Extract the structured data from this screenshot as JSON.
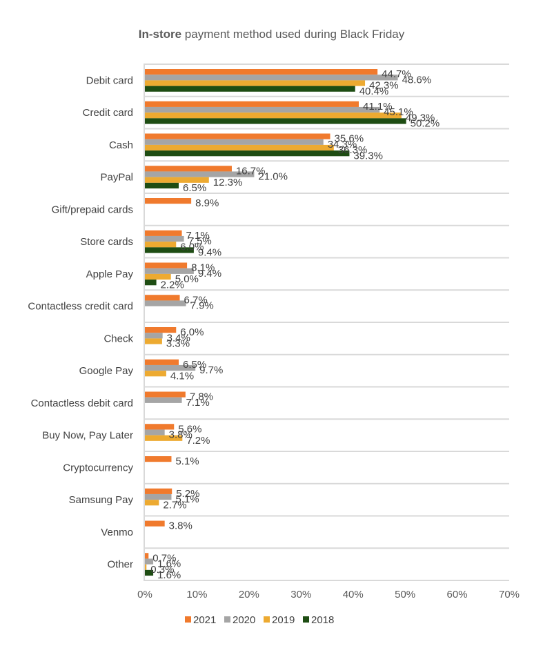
{
  "chart_data": {
    "type": "bar",
    "orientation": "horizontal",
    "title_bold": "In-store",
    "title_rest": " payment method used during Black Friday",
    "title": "In-store payment method used during Black Friday",
    "xlabel": "",
    "ylabel": "",
    "xlim": [
      0,
      70
    ],
    "x_ticks": [
      0,
      10,
      20,
      30,
      40,
      50,
      60,
      70
    ],
    "x_tick_format": "percent",
    "grid": "horizontal category separators",
    "legend_position": "bottom",
    "categories": [
      "Debit card",
      "Credit card",
      "Cash",
      "PayPal",
      "Gift/prepaid cards",
      "Store cards",
      "Apple Pay",
      "Contactless credit card",
      "Check",
      "Google Pay",
      "Contactless debit card",
      "Buy Now, Pay Later",
      "Cryptocurrency",
      "Samsung Pay",
      "Venmo",
      "Other"
    ],
    "series": [
      {
        "name": "2021",
        "color": "#F07A2D",
        "values": [
          44.7,
          41.1,
          35.6,
          16.7,
          8.9,
          7.1,
          8.1,
          6.7,
          6.0,
          6.5,
          7.8,
          5.6,
          5.1,
          5.2,
          3.8,
          0.7
        ]
      },
      {
        "name": "2020",
        "color": "#A5A5A5",
        "values": [
          48.6,
          45.1,
          34.3,
          21.0,
          null,
          7.5,
          9.4,
          7.9,
          3.4,
          9.7,
          7.1,
          3.8,
          null,
          5.1,
          null,
          1.6
        ]
      },
      {
        "name": "2019",
        "color": "#EDAA31",
        "values": [
          42.3,
          49.3,
          36.3,
          12.3,
          null,
          6.0,
          5.0,
          null,
          3.3,
          4.1,
          null,
          7.2,
          null,
          2.7,
          null,
          0.3
        ]
      },
      {
        "name": "2018",
        "color": "#1E4D13",
        "values": [
          40.4,
          50.2,
          39.3,
          6.5,
          null,
          9.4,
          2.2,
          null,
          null,
          null,
          null,
          null,
          null,
          null,
          null,
          1.6
        ]
      }
    ]
  }
}
